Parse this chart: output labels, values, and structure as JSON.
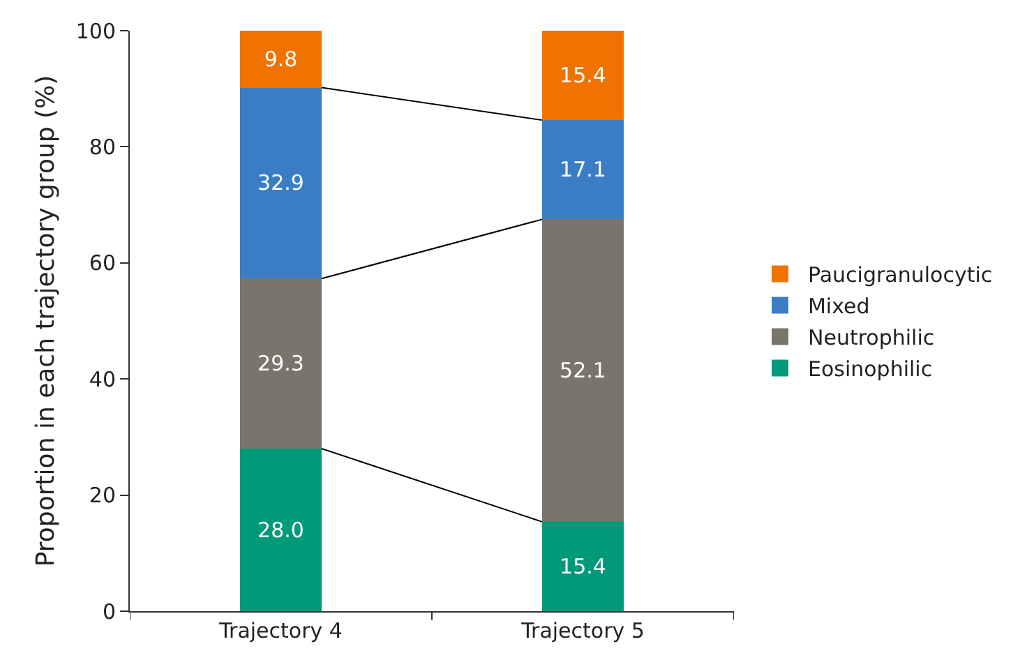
{
  "chart_data": {
    "type": "bar",
    "stacked": true,
    "categories": [
      "Trajectory 4",
      "Trajectory 5"
    ],
    "ylabel": "Proportion in each trajectory group (%)",
    "ylim": [
      0,
      100
    ],
    "yticks": [
      0,
      20,
      40,
      60,
      80,
      100
    ],
    "grid": false,
    "legend": "right",
    "series": [
      {
        "name": "Eosinophilic",
        "color": "#009a78",
        "values": [
          28.0,
          15.4
        ],
        "value_labels": [
          "28.0",
          "15.4"
        ]
      },
      {
        "name": "Neutrophilic",
        "color": "#79756c",
        "values": [
          29.3,
          52.1
        ],
        "value_labels": [
          "29.3",
          "52.1"
        ]
      },
      {
        "name": "Mixed",
        "color": "#3a7dc5",
        "values": [
          32.9,
          17.1
        ],
        "value_labels": [
          "32.9",
          "17.1"
        ]
      },
      {
        "name": "Paucigranulocytic",
        "color": "#f07300",
        "values": [
          9.8,
          15.4
        ],
        "value_labels": [
          "9.8",
          "15.4"
        ]
      }
    ]
  }
}
